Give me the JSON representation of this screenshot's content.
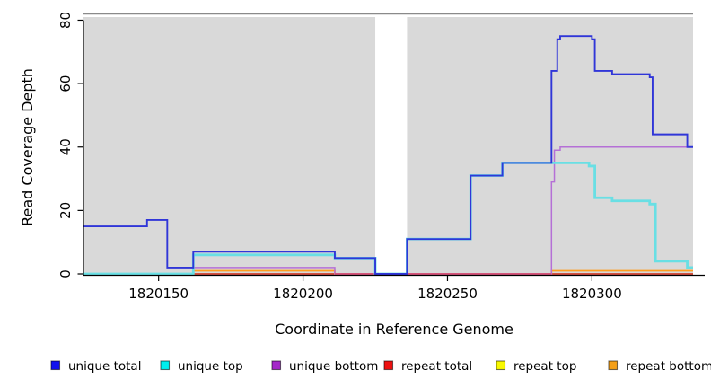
{
  "figure": {
    "plot_bg_color": "#d9d9d9",
    "gap_color": "#ffffff",
    "top_line_color": "#8a8a8a",
    "axis_color": "#000000"
  },
  "chart_data": {
    "type": "line",
    "subtype": "step-coverage",
    "title": "",
    "xlabel": "Coordinate in Reference Genome",
    "ylabel": "Read Coverage Depth",
    "xlim": [
      1820124,
      1820335
    ],
    "ylim": [
      0,
      80
    ],
    "x_ticks": [
      1820150,
      1820200,
      1820250,
      1820300
    ],
    "y_ticks": [
      0,
      20,
      40,
      60,
      80
    ],
    "grid": false,
    "legend_position": "bottom",
    "coverage_regions": [
      [
        1820124,
        1820225
      ],
      [
        1820236,
        1820335
      ]
    ],
    "zero_coverage_gap": [
      1820225,
      1820236
    ],
    "series": [
      {
        "name": "repeat top",
        "layer": 1,
        "color": "#f5f500",
        "width": 1.4,
        "steps": [
          [
            1820124,
            0
          ]
        ]
      },
      {
        "name": "repeat total",
        "layer": 2,
        "color": "#cc2233",
        "width": 1.4,
        "steps": [
          [
            1820124,
            0
          ]
        ]
      },
      {
        "name": "repeat bottom",
        "layer": 3,
        "color": "#ff9d1e",
        "width": 1.7,
        "steps": [
          [
            1820124,
            0
          ],
          [
            1820162,
            1
          ],
          [
            1820211,
            0
          ],
          [
            1820286,
            1
          ]
        ]
      },
      {
        "name": "unique bottom",
        "layer": 4,
        "color": "#b570d6",
        "width": 1.5,
        "steps": [
          [
            1820124,
            0
          ],
          [
            1820162,
            2
          ],
          [
            1820211,
            0
          ],
          [
            1820286,
            29
          ],
          [
            1820287,
            39
          ],
          [
            1820289,
            40
          ]
        ]
      },
      {
        "name": "unique top",
        "layer": 7,
        "color": "#69dfe4",
        "width": 2.8,
        "steps": [
          [
            1820124,
            0
          ],
          [
            1820162,
            6
          ],
          [
            1820211,
            5
          ],
          [
            1820225,
            0
          ],
          [
            1820236,
            11
          ],
          [
            1820258,
            31
          ],
          [
            1820269,
            35
          ],
          [
            1820299,
            34
          ],
          [
            1820301,
            24
          ],
          [
            1820307,
            23
          ],
          [
            1820320,
            22
          ],
          [
            1820322,
            4
          ],
          [
            1820333,
            2
          ]
        ]
      },
      {
        "name": "unique total",
        "layer": 8,
        "color": "#3036d8",
        "width": 1.9,
        "steps": [
          [
            1820124,
            15
          ],
          [
            1820146,
            17
          ],
          [
            1820153,
            2
          ],
          [
            1820162,
            7
          ],
          [
            1820211,
            5
          ],
          [
            1820225,
            0
          ],
          [
            1820236,
            11
          ],
          [
            1820258,
            31
          ],
          [
            1820269,
            35
          ],
          [
            1820286,
            64
          ],
          [
            1820288,
            74
          ],
          [
            1820289,
            75
          ],
          [
            1820300,
            74
          ],
          [
            1820301,
            64
          ],
          [
            1820307,
            63
          ],
          [
            1820320,
            62
          ],
          [
            1820321,
            44
          ],
          [
            1820333,
            40
          ]
        ]
      }
    ],
    "overlap_tints": [
      {
        "name": "yellow-cyan-overlap",
        "layer": 5,
        "color": "#8fcf8f",
        "width": 1.8,
        "y": 0,
        "x1": 1820124,
        "x2": 1820162
      },
      {
        "name": "red-purple-overlap",
        "layer": 6,
        "color": "#d44e7a",
        "width": 1.8,
        "y": 0,
        "x1": 1820211,
        "x2": 1820286
      }
    ]
  },
  "legend": {
    "items": [
      {
        "label": "unique total",
        "color": "#1111ee"
      },
      {
        "label": "unique top",
        "color": "#00eeee"
      },
      {
        "label": "unique bottom",
        "color": "#a428c8"
      },
      {
        "label": "repeat total",
        "color": "#ee1111"
      },
      {
        "label": "repeat top",
        "color": "#f8f800"
      },
      {
        "label": "repeat bottom",
        "color": "#f5a019"
      }
    ]
  }
}
